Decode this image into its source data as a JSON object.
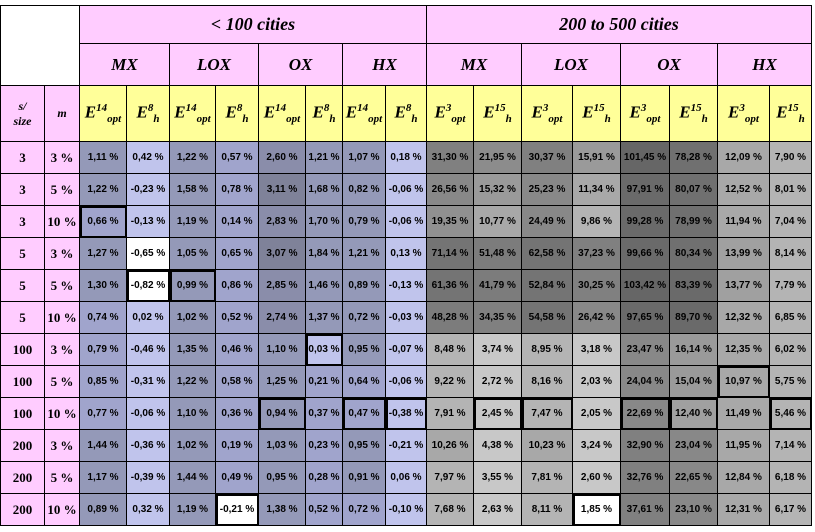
{
  "header": {
    "group_left": "< 100 cities",
    "group_right": "200 to 500 cities",
    "algorithms": [
      "MX",
      "LOX",
      "OX",
      "HX",
      "MX",
      "LOX",
      "OX",
      "HX"
    ],
    "size_label_top": "s/",
    "size_label_bottom": "size",
    "m_label": "m"
  },
  "columns": [
    {
      "base": "E",
      "sub": "opt",
      "sup": "14"
    },
    {
      "base": "E",
      "sub": "h",
      "sup": "8"
    },
    {
      "base": "E",
      "sub": "opt",
      "sup": "14"
    },
    {
      "base": "E",
      "sub": "h",
      "sup": "8"
    },
    {
      "base": "E",
      "sub": "opt",
      "sup": "14"
    },
    {
      "base": "E",
      "sub": "h",
      "sup": "8"
    },
    {
      "base": "E",
      "sub": "opt",
      "sup": "14"
    },
    {
      "base": "E",
      "sub": "h",
      "sup": "8"
    },
    {
      "base": "E",
      "sub": "opt",
      "sup": "3"
    },
    {
      "base": "E",
      "sub": "h",
      "sup": "15"
    },
    {
      "base": "E",
      "sub": "opt",
      "sup": "3"
    },
    {
      "base": "E",
      "sub": "h",
      "sup": "15"
    },
    {
      "base": "E",
      "sub": "opt",
      "sup": "3"
    },
    {
      "base": "E",
      "sub": "h",
      "sup": "15"
    },
    {
      "base": "E",
      "sub": "opt",
      "sup": "3"
    },
    {
      "base": "E",
      "sub": "h",
      "sup": "15"
    }
  ],
  "rows": [
    {
      "s": "3",
      "m": "3 %",
      "cells": [
        {
          "v": "1,11 %",
          "c": "#9499b8"
        },
        {
          "v": "0,42 %",
          "c": "#c0c4ec"
        },
        {
          "v": "1,22 %",
          "c": "#9499b8"
        },
        {
          "v": "0,57 %",
          "c": "#a0a4cc"
        },
        {
          "v": "2,60 %",
          "c": "#8a8daa"
        },
        {
          "v": "1,21 %",
          "c": "#9499b8"
        },
        {
          "v": "1,07 %",
          "c": "#9499b8"
        },
        {
          "v": "0,18 %",
          "c": "#c0c4ec"
        },
        {
          "v": "31,30 %",
          "c": "#808080"
        },
        {
          "v": "21,95 %",
          "c": "#8c8c8c"
        },
        {
          "v": "30,37 %",
          "c": "#808080"
        },
        {
          "v": "15,91 %",
          "c": "#9a9a9a"
        },
        {
          "v": "101,45 %",
          "c": "#666666"
        },
        {
          "v": "78,28 %",
          "c": "#707070"
        },
        {
          "v": "12,09 %",
          "c": "#a8a8a8"
        },
        {
          "v": "7,90 %",
          "c": "#b4b4b4"
        }
      ]
    },
    {
      "s": "3",
      "m": "5 %",
      "cells": [
        {
          "v": "1,22 %",
          "c": "#9499b8"
        },
        {
          "v": "-0,23 %",
          "c": "#c0c4ec"
        },
        {
          "v": "1,58 %",
          "c": "#9499b8"
        },
        {
          "v": "0,78 %",
          "c": "#a0a4cc"
        },
        {
          "v": "3,11 %",
          "c": "#7f8299"
        },
        {
          "v": "1,68 %",
          "c": "#9499b8"
        },
        {
          "v": "0,82 %",
          "c": "#9499b8"
        },
        {
          "v": "-0,06 %",
          "c": "#c0c4ec"
        },
        {
          "v": "26,56 %",
          "c": "#888888"
        },
        {
          "v": "15,32 %",
          "c": "#9a9a9a"
        },
        {
          "v": "25,23 %",
          "c": "#888888"
        },
        {
          "v": "11,34 %",
          "c": "#a8a8a8"
        },
        {
          "v": "97,91 %",
          "c": "#6a6a6a"
        },
        {
          "v": "80,07 %",
          "c": "#707070"
        },
        {
          "v": "12,52 %",
          "c": "#a8a8a8"
        },
        {
          "v": "8,01 %",
          "c": "#b4b4b4"
        }
      ]
    },
    {
      "s": "3",
      "m": "10 %",
      "cells": [
        {
          "v": "0,66 %",
          "c": "#a0a4cc",
          "hl": true
        },
        {
          "v": "-0,13 %",
          "c": "#c0c4ec"
        },
        {
          "v": "1,19 %",
          "c": "#9499b8"
        },
        {
          "v": "0,14 %",
          "c": "#a0a4cc"
        },
        {
          "v": "2,83 %",
          "c": "#8a8daa"
        },
        {
          "v": "1,70 %",
          "c": "#9499b8"
        },
        {
          "v": "0,79 %",
          "c": "#9499b8"
        },
        {
          "v": "-0,06 %",
          "c": "#c0c4ec"
        },
        {
          "v": "19,35 %",
          "c": "#909090"
        },
        {
          "v": "10,77 %",
          "c": "#a8a8a8"
        },
        {
          "v": "24,49 %",
          "c": "#888888"
        },
        {
          "v": "9,86 %",
          "c": "#b4b4b4"
        },
        {
          "v": "99,28 %",
          "c": "#6a6a6a"
        },
        {
          "v": "78,99 %",
          "c": "#707070"
        },
        {
          "v": "11,94 %",
          "c": "#a8a8a8"
        },
        {
          "v": "7,04 %",
          "c": "#b4b4b4"
        }
      ]
    },
    {
      "s": "5",
      "m": "3 %",
      "cells": [
        {
          "v": "1,27 %",
          "c": "#9499b8"
        },
        {
          "v": "-0,65 %",
          "c": "#ffffff"
        },
        {
          "v": "1,05 %",
          "c": "#9499b8"
        },
        {
          "v": "0,65 %",
          "c": "#a0a4cc"
        },
        {
          "v": "3,07 %",
          "c": "#7f8299"
        },
        {
          "v": "1,84 %",
          "c": "#9499b8"
        },
        {
          "v": "1,21 %",
          "c": "#9499b8"
        },
        {
          "v": "0,13 %",
          "c": "#c0c4ec"
        },
        {
          "v": "71,14 %",
          "c": "#747474"
        },
        {
          "v": "51,48 %",
          "c": "#7c7c7c"
        },
        {
          "v": "62,58 %",
          "c": "#747474"
        },
        {
          "v": "37,23 %",
          "c": "#808080"
        },
        {
          "v": "99,66 %",
          "c": "#6a6a6a"
        },
        {
          "v": "80,34 %",
          "c": "#707070"
        },
        {
          "v": "13,99 %",
          "c": "#a0a0a0"
        },
        {
          "v": "8,14 %",
          "c": "#b4b4b4"
        }
      ]
    },
    {
      "s": "5",
      "m": "5 %",
      "cells": [
        {
          "v": "1,30 %",
          "c": "#9499b8"
        },
        {
          "v": "-0,82 %",
          "c": "#ffffff",
          "hl": true
        },
        {
          "v": "0,99 %",
          "c": "#9499b8",
          "hl": true
        },
        {
          "v": "0,86 %",
          "c": "#a0a4cc"
        },
        {
          "v": "2,85 %",
          "c": "#8a8daa"
        },
        {
          "v": "1,46 %",
          "c": "#9499b8"
        },
        {
          "v": "0,89 %",
          "c": "#9499b8"
        },
        {
          "v": "-0,13 %",
          "c": "#c0c4ec"
        },
        {
          "v": "61,36 %",
          "c": "#747474"
        },
        {
          "v": "41,79 %",
          "c": "#7c7c7c"
        },
        {
          "v": "52,84 %",
          "c": "#747474"
        },
        {
          "v": "30,25 %",
          "c": "#808080"
        },
        {
          "v": "103,42 %",
          "c": "#666666"
        },
        {
          "v": "83,39 %",
          "c": "#6a6a6a"
        },
        {
          "v": "13,77 %",
          "c": "#a0a0a0"
        },
        {
          "v": "7,79 %",
          "c": "#b4b4b4"
        }
      ]
    },
    {
      "s": "5",
      "m": "10 %",
      "cells": [
        {
          "v": "0,74 %",
          "c": "#a0a4cc"
        },
        {
          "v": "0,02 %",
          "c": "#c0c4ec"
        },
        {
          "v": "1,02 %",
          "c": "#9499b8"
        },
        {
          "v": "0,52 %",
          "c": "#a0a4cc"
        },
        {
          "v": "2,74 %",
          "c": "#8a8daa"
        },
        {
          "v": "1,37 %",
          "c": "#9499b8"
        },
        {
          "v": "0,72 %",
          "c": "#9499b8"
        },
        {
          "v": "-0,03 %",
          "c": "#c0c4ec"
        },
        {
          "v": "48,28 %",
          "c": "#7c7c7c"
        },
        {
          "v": "34,35 %",
          "c": "#808080"
        },
        {
          "v": "54,58 %",
          "c": "#747474"
        },
        {
          "v": "26,42 %",
          "c": "#888888"
        },
        {
          "v": "97,65 %",
          "c": "#6a6a6a"
        },
        {
          "v": "89,70 %",
          "c": "#6a6a6a"
        },
        {
          "v": "12,32 %",
          "c": "#a8a8a8"
        },
        {
          "v": "6,85 %",
          "c": "#b4b4b4"
        }
      ]
    },
    {
      "s": "100",
      "m": "3 %",
      "cells": [
        {
          "v": "0,79 %",
          "c": "#a0a4cc"
        },
        {
          "v": "-0,46 %",
          "c": "#c0c4ec"
        },
        {
          "v": "1,35 %",
          "c": "#9499b8"
        },
        {
          "v": "0,46 %",
          "c": "#a0a4cc"
        },
        {
          "v": "1,10 %",
          "c": "#9499b8"
        },
        {
          "v": "0,03 %",
          "c": "#c0c4ec",
          "hl": true
        },
        {
          "v": "0,95 %",
          "c": "#9499b8"
        },
        {
          "v": "-0,07 %",
          "c": "#c0c4ec"
        },
        {
          "v": "8,48 %",
          "c": "#b4b4b4"
        },
        {
          "v": "3,74 %",
          "c": "#c8c8c8"
        },
        {
          "v": "8,95 %",
          "c": "#b4b4b4"
        },
        {
          "v": "3,18 %",
          "c": "#c8c8c8"
        },
        {
          "v": "23,47 %",
          "c": "#888888"
        },
        {
          "v": "16,14 %",
          "c": "#9a9a9a"
        },
        {
          "v": "12,35 %",
          "c": "#a8a8a8"
        },
        {
          "v": "6,02 %",
          "c": "#b4b4b4"
        }
      ]
    },
    {
      "s": "100",
      "m": "5 %",
      "cells": [
        {
          "v": "0,85 %",
          "c": "#a0a4cc"
        },
        {
          "v": "-0,31 %",
          "c": "#c0c4ec"
        },
        {
          "v": "1,22 %",
          "c": "#9499b8"
        },
        {
          "v": "0,58 %",
          "c": "#a0a4cc"
        },
        {
          "v": "1,25 %",
          "c": "#9499b8"
        },
        {
          "v": "0,21 %",
          "c": "#a0a4cc"
        },
        {
          "v": "0,64 %",
          "c": "#a0a4cc"
        },
        {
          "v": "-0,06 %",
          "c": "#c0c4ec"
        },
        {
          "v": "9,22 %",
          "c": "#b4b4b4"
        },
        {
          "v": "2,72 %",
          "c": "#c8c8c8"
        },
        {
          "v": "8,16 %",
          "c": "#b4b4b4"
        },
        {
          "v": "2,03 %",
          "c": "#c8c8c8"
        },
        {
          "v": "24,04 %",
          "c": "#888888"
        },
        {
          "v": "15,04 %",
          "c": "#9a9a9a"
        },
        {
          "v": "10,97 %",
          "c": "#a8a8a8",
          "hl": true
        },
        {
          "v": "5,75 %",
          "c": "#b4b4b4"
        }
      ]
    },
    {
      "s": "100",
      "m": "10 %",
      "cells": [
        {
          "v": "0,77 %",
          "c": "#a0a4cc"
        },
        {
          "v": "-0,06 %",
          "c": "#c0c4ec"
        },
        {
          "v": "1,10 %",
          "c": "#9499b8"
        },
        {
          "v": "0,36 %",
          "c": "#a0a4cc"
        },
        {
          "v": "0,94 %",
          "c": "#9499b8",
          "hl": true
        },
        {
          "v": "0,37 %",
          "c": "#a0a4cc"
        },
        {
          "v": "0,47 %",
          "c": "#a0a4cc",
          "hl": true
        },
        {
          "v": "-0,38 %",
          "c": "#c0c4ec",
          "hl": true
        },
        {
          "v": "7,91 %",
          "c": "#b4b4b4"
        },
        {
          "v": "2,45 %",
          "c": "#c8c8c8",
          "hl": true
        },
        {
          "v": "7,47 %",
          "c": "#b4b4b4",
          "hl": true
        },
        {
          "v": "2,05 %",
          "c": "#c8c8c8"
        },
        {
          "v": "22,69 %",
          "c": "#888888",
          "hl": true
        },
        {
          "v": "12,40 %",
          "c": "#a0a0a0",
          "hl": true
        },
        {
          "v": "11,49 %",
          "c": "#a8a8a8"
        },
        {
          "v": "5,46 %",
          "c": "#b4b4b4",
          "hl": true
        }
      ]
    },
    {
      "s": "200",
      "m": "3 %",
      "cells": [
        {
          "v": "1,44 %",
          "c": "#9499b8"
        },
        {
          "v": "-0,36 %",
          "c": "#c0c4ec"
        },
        {
          "v": "1,02 %",
          "c": "#9499b8"
        },
        {
          "v": "0,19 %",
          "c": "#a0a4cc"
        },
        {
          "v": "1,03 %",
          "c": "#9499b8"
        },
        {
          "v": "0,23 %",
          "c": "#a0a4cc"
        },
        {
          "v": "0,95 %",
          "c": "#9499b8"
        },
        {
          "v": "-0,21 %",
          "c": "#c0c4ec"
        },
        {
          "v": "10,26 %",
          "c": "#a8a8a8"
        },
        {
          "v": "4,38 %",
          "c": "#c8c8c8"
        },
        {
          "v": "10,23 %",
          "c": "#a8a8a8"
        },
        {
          "v": "3,24 %",
          "c": "#c8c8c8"
        },
        {
          "v": "32,90 %",
          "c": "#808080"
        },
        {
          "v": "23,04 %",
          "c": "#888888"
        },
        {
          "v": "11,95 %",
          "c": "#a8a8a8"
        },
        {
          "v": "7,14 %",
          "c": "#b4b4b4"
        }
      ]
    },
    {
      "s": "200",
      "m": "5 %",
      "cells": [
        {
          "v": "1,17 %",
          "c": "#9499b8"
        },
        {
          "v": "-0,39 %",
          "c": "#c0c4ec"
        },
        {
          "v": "1,44 %",
          "c": "#9499b8"
        },
        {
          "v": "0,49 %",
          "c": "#a0a4cc"
        },
        {
          "v": "0,95 %",
          "c": "#9499b8"
        },
        {
          "v": "0,28 %",
          "c": "#a0a4cc"
        },
        {
          "v": "0,91 %",
          "c": "#9499b8"
        },
        {
          "v": "0,06 %",
          "c": "#c0c4ec"
        },
        {
          "v": "7,97 %",
          "c": "#b4b4b4"
        },
        {
          "v": "3,55 %",
          "c": "#c8c8c8"
        },
        {
          "v": "7,81 %",
          "c": "#b4b4b4"
        },
        {
          "v": "2,60 %",
          "c": "#c8c8c8"
        },
        {
          "v": "32,76 %",
          "c": "#808080"
        },
        {
          "v": "22,65 %",
          "c": "#888888"
        },
        {
          "v": "12,84 %",
          "c": "#a8a8a8"
        },
        {
          "v": "6,18 %",
          "c": "#b4b4b4"
        }
      ]
    },
    {
      "s": "200",
      "m": "10 %",
      "cells": [
        {
          "v": "0,89 %",
          "c": "#9499b8"
        },
        {
          "v": "0,32 %",
          "c": "#c0c4ec"
        },
        {
          "v": "1,19 %",
          "c": "#9499b8"
        },
        {
          "v": "-0,21 %",
          "c": "#ffffff",
          "hl": true
        },
        {
          "v": "1,38 %",
          "c": "#9499b8"
        },
        {
          "v": "0,52 %",
          "c": "#a0a4cc"
        },
        {
          "v": "0,72 %",
          "c": "#a0a4cc"
        },
        {
          "v": "-0,10 %",
          "c": "#c0c4ec"
        },
        {
          "v": "7,68 %",
          "c": "#b4b4b4"
        },
        {
          "v": "2,63 %",
          "c": "#c8c8c8"
        },
        {
          "v": "8,11 %",
          "c": "#b4b4b4"
        },
        {
          "v": "1,85 %",
          "c": "#ffffff",
          "hl": true
        },
        {
          "v": "37,61 %",
          "c": "#808080"
        },
        {
          "v": "23,10 %",
          "c": "#888888"
        },
        {
          "v": "12,31 %",
          "c": "#a8a8a8"
        },
        {
          "v": "6,17 %",
          "c": "#b4b4b4"
        }
      ]
    }
  ]
}
